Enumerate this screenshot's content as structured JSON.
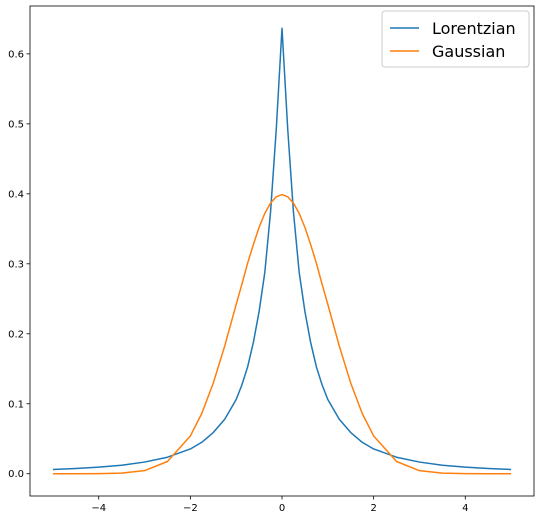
{
  "chart_data": {
    "type": "line",
    "title": "",
    "xlabel": "",
    "ylabel": "",
    "xlim": [
      -5.5,
      5.5
    ],
    "ylim": [
      -0.0318,
      0.6684
    ],
    "x_ticks": [
      -4,
      -2,
      0,
      2,
      4
    ],
    "y_ticks": [
      0.0,
      0.1,
      0.2,
      0.3,
      0.4,
      0.5,
      0.6
    ],
    "x_tick_labels": [
      "−4",
      "−2",
      "0",
      "2",
      "4"
    ],
    "y_tick_labels": [
      "0.0",
      "0.1",
      "0.2",
      "0.3",
      "0.4",
      "0.5",
      "0.6"
    ],
    "grid": false,
    "legend_position": "top-right",
    "x": [
      -5,
      -4.5,
      -4,
      -3.5,
      -3,
      -2.5,
      -2,
      -1.75,
      -1.5,
      -1.25,
      -1,
      -0.875,
      -0.75,
      -0.625,
      -0.5,
      -0.375,
      -0.25,
      -0.125,
      0,
      0.125,
      0.25,
      0.375,
      0.5,
      0.625,
      0.75,
      0.875,
      1,
      1.25,
      1.5,
      1.75,
      2,
      2.5,
      3,
      3.5,
      4,
      4.5,
      5
    ],
    "series": [
      {
        "name": "Lorentzian",
        "color": "#1f77b4",
        "values": [
          0.0061,
          0.0075,
          0.0094,
          0.0122,
          0.0167,
          0.0236,
          0.0354,
          0.045,
          0.0589,
          0.0779,
          0.1061,
          0.127,
          0.1528,
          0.1876,
          0.2318,
          0.2878,
          0.374,
          0.4923,
          0.6366,
          0.4923,
          0.374,
          0.2878,
          0.2318,
          0.1876,
          0.1528,
          0.127,
          0.1061,
          0.0779,
          0.0589,
          0.045,
          0.0354,
          0.0236,
          0.0167,
          0.0122,
          0.0094,
          0.0075,
          0.0061
        ]
      },
      {
        "name": "Gaussian",
        "color": "#ff7f0e",
        "values": [
          0.0,
          0.0,
          0.0001,
          0.0009,
          0.0044,
          0.0175,
          0.054,
          0.0863,
          0.1295,
          0.1826,
          0.242,
          0.2709,
          0.3011,
          0.3275,
          0.3521,
          0.3721,
          0.3867,
          0.3958,
          0.3989,
          0.3958,
          0.3867,
          0.3721,
          0.3521,
          0.3275,
          0.3011,
          0.2709,
          0.242,
          0.1826,
          0.1295,
          0.0863,
          0.054,
          0.0175,
          0.0044,
          0.0009,
          0.0001,
          0.0,
          0.0
        ]
      }
    ]
  }
}
